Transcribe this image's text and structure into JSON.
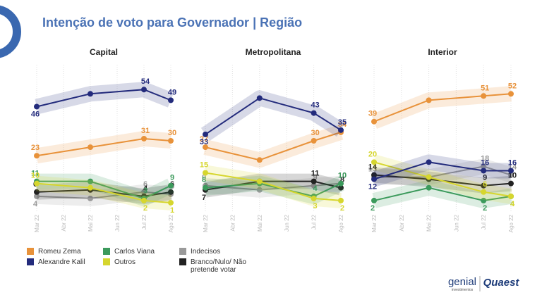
{
  "title": "Intenção de voto para Governador | Região",
  "logos": [
    "genial",
    "investimentos",
    "Quaest"
  ],
  "chart_data": [
    {
      "type": "line",
      "title": "Capital",
      "xlim": [
        3,
        8
      ],
      "ylim": [
        0,
        60
      ],
      "xticks": [
        {
          "value": 3,
          "label": "Mar 22"
        },
        {
          "value": 4,
          "label": "Abr 22"
        },
        {
          "value": 5,
          "label": "Mai 22"
        },
        {
          "value": 6,
          "label": "Jun 22"
        },
        {
          "value": 7,
          "label": "Jul 22"
        },
        {
          "value": 8,
          "label": "Ago 22"
        }
      ],
      "x": [
        3,
        5,
        7,
        8
      ],
      "series": [
        {
          "name": "Romeu Zema",
          "color": "#e8923a",
          "values": [
            23,
            27,
            31,
            30
          ],
          "value_labels": [
            23,
            null,
            31,
            30
          ]
        },
        {
          "name": "Alexandre Kalil",
          "color": "#232b7c",
          "values": [
            46,
            52,
            54,
            49
          ],
          "value_labels": [
            46,
            null,
            54,
            49
          ]
        },
        {
          "name": "Carlos Viana",
          "color": "#3c9a5c",
          "values": [
            11,
            11,
            3,
            9
          ],
          "value_labels": [
            11,
            null,
            3,
            9
          ]
        },
        {
          "name": "Outros",
          "color": "#d6d62e",
          "values": [
            10,
            8,
            2,
            1
          ],
          "value_labels": [
            10,
            null,
            2,
            1
          ]
        },
        {
          "name": "Indecisos",
          "color": "#9a9a9a",
          "values": [
            4,
            3,
            6,
            5
          ],
          "value_labels": [
            4,
            null,
            6,
            5
          ]
        },
        {
          "name": "Branco/Nulo/ Não pretende votar",
          "color": "#222222",
          "values": [
            6,
            7,
            4,
            6
          ],
          "value_labels": [
            6,
            null,
            4,
            6
          ]
        }
      ]
    },
    {
      "type": "line",
      "title": "Metropolitana",
      "xlim": [
        3,
        8
      ],
      "ylim": [
        0,
        60
      ],
      "xticks": [
        {
          "value": 3,
          "label": "Mar 22"
        },
        {
          "value": 4,
          "label": "Abr 22"
        },
        {
          "value": 5,
          "label": "Mai 22"
        },
        {
          "value": 6,
          "label": "Jun 22"
        },
        {
          "value": 7,
          "label": "Jul 22"
        },
        {
          "value": 8,
          "label": "Ago 22"
        }
      ],
      "x": [
        3,
        5,
        7,
        8
      ],
      "series": [
        {
          "name": "Romeu Zema",
          "color": "#e8923a",
          "values": [
            27,
            21,
            30,
            34
          ],
          "value_labels": [
            27,
            null,
            30,
            34
          ]
        },
        {
          "name": "Alexandre Kalil",
          "color": "#232b7c",
          "values": [
            33,
            50,
            43,
            35
          ],
          "value_labels": [
            33,
            null,
            43,
            35
          ]
        },
        {
          "name": "Carlos Viana",
          "color": "#3c9a5c",
          "values": [
            8,
            10,
            4,
            10
          ],
          "value_labels": [
            8,
            null,
            4,
            10
          ]
        },
        {
          "name": "Outros",
          "color": "#d6d62e",
          "values": [
            15,
            11,
            3,
            2
          ],
          "value_labels": [
            15,
            null,
            3,
            2
          ]
        },
        {
          "name": "Indecisos",
          "color": "#9a9a9a",
          "values": [
            9,
            7,
            9,
            10
          ],
          "value_labels": [
            9,
            null,
            9,
            10
          ]
        },
        {
          "name": "Branco/Nulo/ Não pretende votar",
          "color": "#222222",
          "values": [
            7,
            11,
            11,
            8
          ],
          "value_labels": [
            7,
            null,
            11,
            8
          ]
        }
      ]
    },
    {
      "type": "line",
      "title": "Interior",
      "xlim": [
        3,
        8
      ],
      "ylim": [
        0,
        60
      ],
      "xticks": [
        {
          "value": 3,
          "label": "Mar 22"
        },
        {
          "value": 4,
          "label": "Abr 22"
        },
        {
          "value": 5,
          "label": "Mai 22"
        },
        {
          "value": 6,
          "label": "Jun 22"
        },
        {
          "value": 7,
          "label": "Jul 22"
        },
        {
          "value": 8,
          "label": "Ago 22"
        }
      ],
      "x": [
        3,
        5,
        7,
        8
      ],
      "series": [
        {
          "name": "Romeu Zema",
          "color": "#e8923a",
          "values": [
            39,
            49,
            51,
            52
          ],
          "value_labels": [
            39,
            null,
            51,
            52
          ]
        },
        {
          "name": "Alexandre Kalil",
          "color": "#232b7c",
          "values": [
            12,
            20,
            16,
            16
          ],
          "value_labels": [
            12,
            null,
            16,
            16
          ]
        },
        {
          "name": "Carlos Viana",
          "color": "#3c9a5c",
          "values": [
            2,
            8,
            2,
            4
          ],
          "value_labels": [
            2,
            null,
            2,
            4
          ]
        },
        {
          "name": "Outros",
          "color": "#d6d62e",
          "values": [
            20,
            13,
            6,
            4
          ],
          "value_labels": [
            20,
            null,
            6,
            4
          ]
        },
        {
          "name": "Indecisos",
          "color": "#9a9a9a",
          "values": [
            13,
            13,
            18,
            14
          ],
          "value_labels": [
            13,
            null,
            18,
            14
          ]
        },
        {
          "name": "Branco/Nulo/ Não pretende votar",
          "color": "#222222",
          "values": [
            14,
            12,
            9,
            10
          ],
          "value_labels": [
            14,
            null,
            9,
            10
          ]
        }
      ]
    }
  ]
}
